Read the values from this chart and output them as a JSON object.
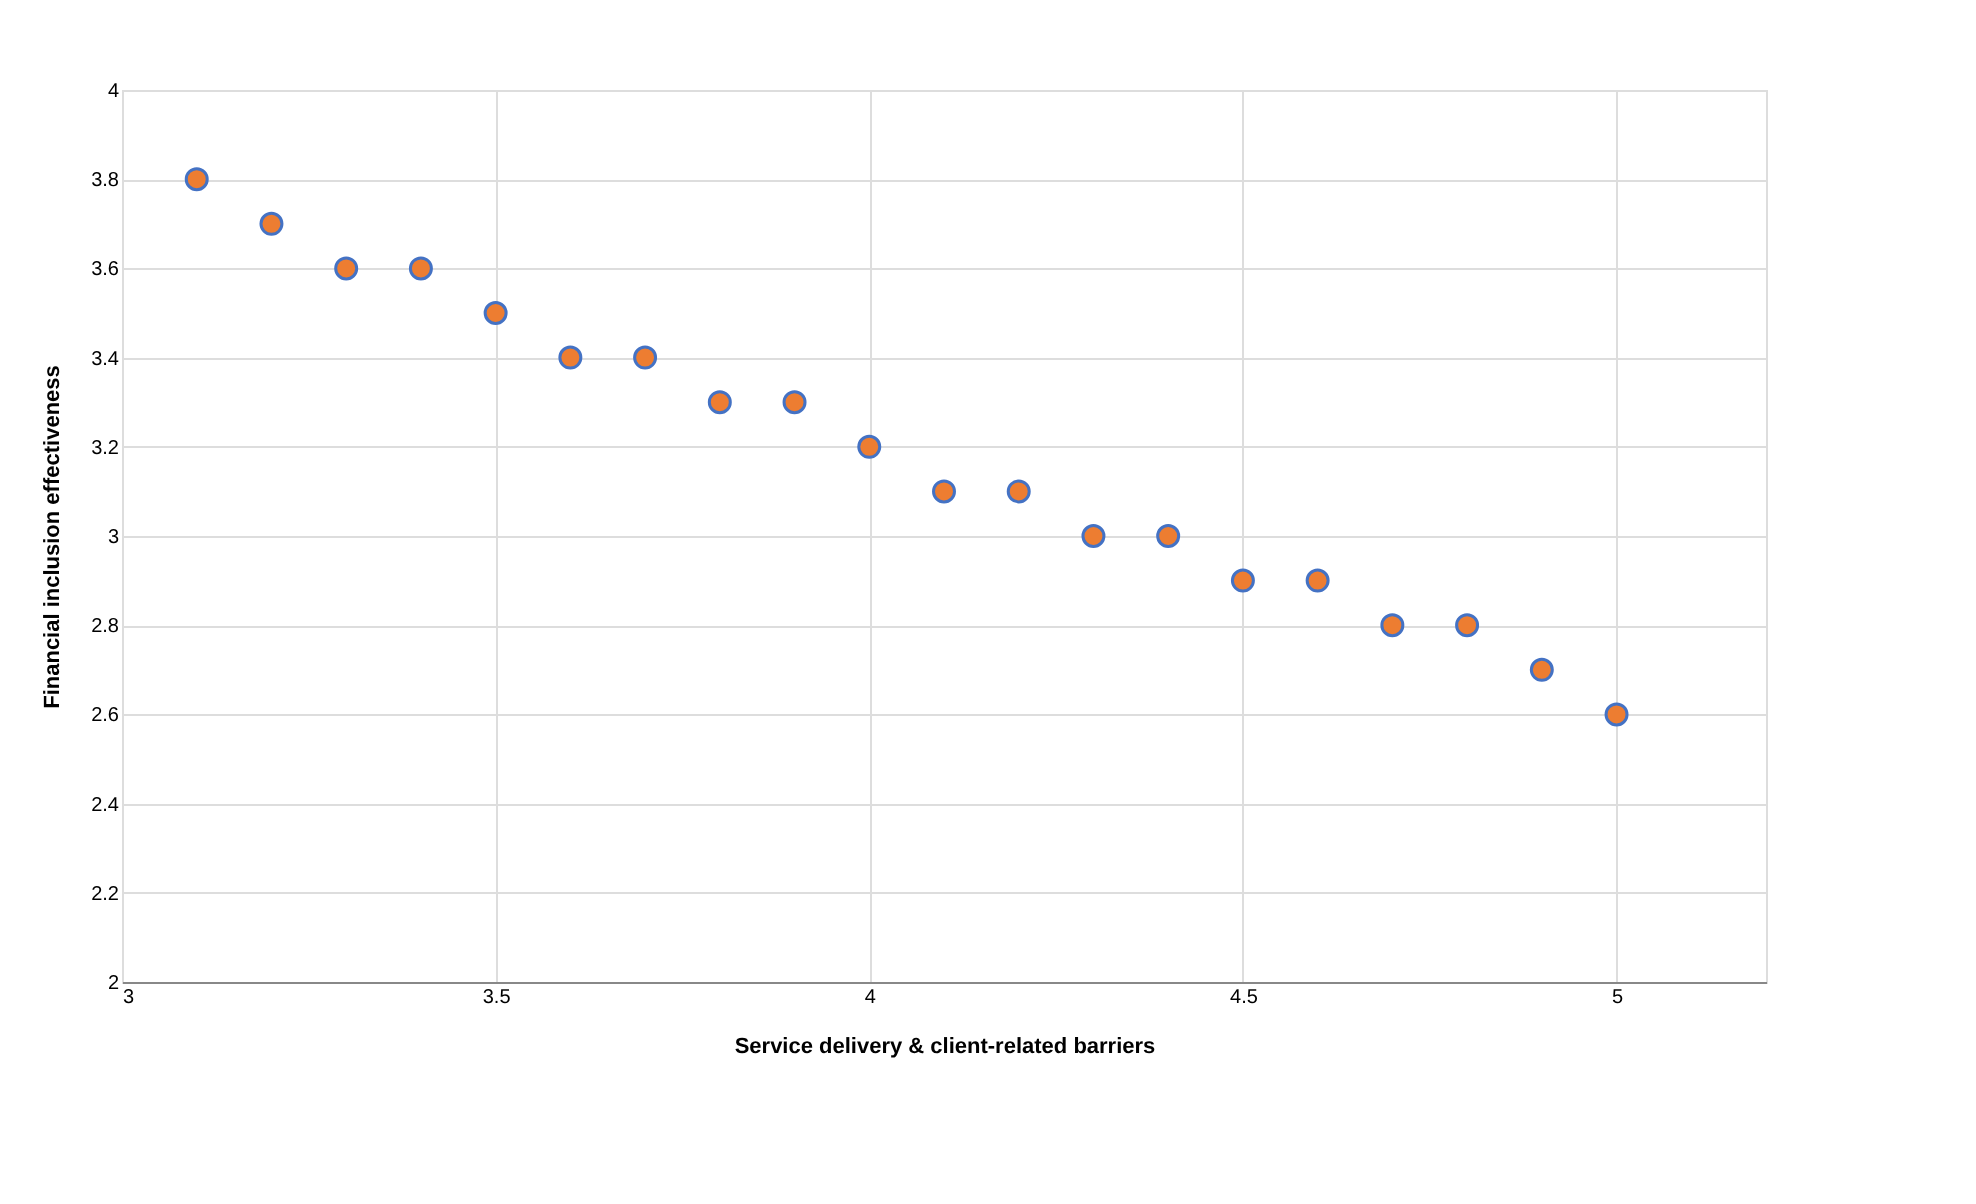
{
  "chart_data": {
    "type": "scatter",
    "xlabel": "Service delivery & client-related barriers",
    "ylabel": "Financial inclusion effectiveness",
    "x": [
      3.1,
      3.2,
      3.3,
      3.4,
      3.5,
      3.6,
      3.7,
      3.8,
      3.9,
      4.0,
      4.1,
      4.2,
      4.3,
      4.4,
      4.5,
      4.6,
      4.7,
      4.8,
      4.9,
      5.0
    ],
    "series": [
      {
        "color": "#ed7d31",
        "values": [
          3.8,
          3.7,
          3.6,
          3.6,
          3.5,
          3.4,
          3.4,
          3.3,
          3.3,
          3.2,
          3.1,
          3.1,
          3.0,
          3.0,
          2.9,
          2.9,
          2.8,
          2.8,
          2.7,
          2.6
        ]
      }
    ],
    "xlim": [
      3,
      5.2
    ],
    "xticks": [
      3,
      3.5,
      4,
      4.5,
      5
    ],
    "ylim": [
      2,
      4
    ],
    "yticks": [
      2,
      2.2,
      2.4,
      2.6,
      2.8,
      3,
      3.2,
      3.4,
      3.6,
      3.8,
      4
    ],
    "grid": true,
    "marker": "circle",
    "legend": false
  }
}
